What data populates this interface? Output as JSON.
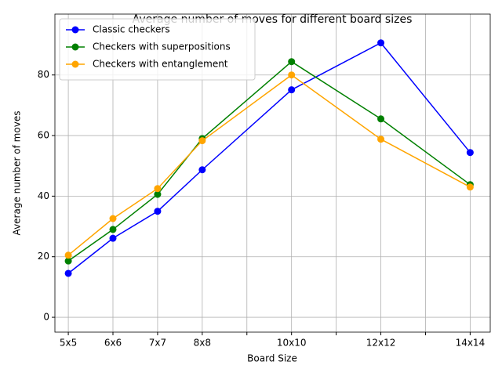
{
  "chart_data": {
    "type": "line",
    "title": "Average number of moves for different board sizes",
    "x_label": "Board Size",
    "y_label": "Average number of moves",
    "x": [
      5,
      6,
      7,
      8,
      10,
      12,
      14
    ],
    "series": [
      {
        "name": "Classic checkers",
        "color": "#0000ff",
        "values": [
          14.5,
          26.1,
          35,
          48.7,
          75.1,
          90.6,
          54.4
        ]
      },
      {
        "name": "Checkers with superpositions",
        "color": "#008000",
        "values": [
          18.6,
          29,
          40.6,
          59,
          84.4,
          65.5,
          43.8
        ]
      },
      {
        "name": "Checkers with entanglement",
        "color": "#ffa500",
        "values": [
          20.5,
          32.6,
          42.5,
          58.3,
          80,
          58.8,
          43
        ]
      }
    ],
    "xlim": [
      4.7,
      14.45
    ],
    "xticks": [
      {
        "value": 5,
        "label": "5x5"
      },
      {
        "value": 6,
        "label": "6x6"
      },
      {
        "value": 7,
        "label": "7x7"
      },
      {
        "value": 8,
        "label": "8x8"
      },
      {
        "value": 9,
        "label": null
      },
      {
        "value": 10,
        "label": "10x10"
      },
      {
        "value": 11,
        "label": null
      },
      {
        "value": 12,
        "label": "12x12"
      },
      {
        "value": 13,
        "label": null
      },
      {
        "value": 14,
        "label": "14x14"
      }
    ],
    "ylim": [
      -4.9,
      100.1
    ],
    "yticks": [
      0,
      20,
      40,
      60,
      80
    ],
    "grid": true,
    "legend": "upper left"
  }
}
